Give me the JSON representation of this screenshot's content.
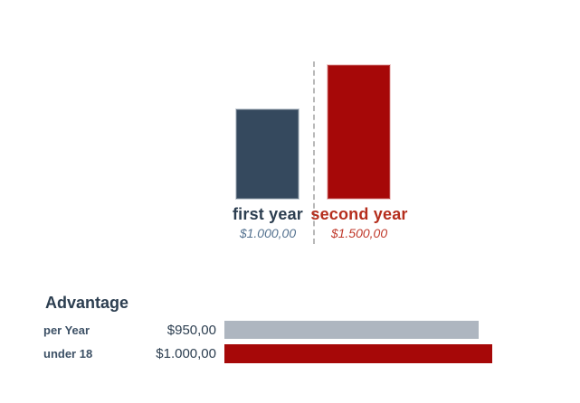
{
  "accent_colors": {
    "navy_text": "#2c3e50",
    "blue_bar": "#35495e",
    "red_bar": "#a60808",
    "gray_bar": "#aeb6c0",
    "dotted_line": "#b9b9b9"
  },
  "chart_data": [
    {
      "type": "bar",
      "orientation": "vertical",
      "categories": [
        "first year",
        "second year"
      ],
      "values": [
        1000,
        1500
      ],
      "value_labels": [
        "$1.000,00",
        "$1.500,00"
      ],
      "bar_colors": [
        "#35495e",
        "#a60808"
      ],
      "category_label_colors": [
        "#2c3e50",
        "#b52e1d"
      ],
      "value_label_colors": [
        "#53718f",
        "#c0392b"
      ],
      "ylim": [
        0,
        1500
      ],
      "grid": false,
      "separator": "dotted vertical line between bars"
    },
    {
      "type": "bar",
      "orientation": "horizontal",
      "title": "Advantage",
      "categories": [
        "per Year",
        "under 18"
      ],
      "values": [
        950,
        1000
      ],
      "value_labels": [
        "$950,00",
        "$1.000,00"
      ],
      "bar_colors": [
        "#aeb6c0",
        "#a60808"
      ],
      "xlim": [
        0,
        1000
      ],
      "grid": false
    }
  ]
}
